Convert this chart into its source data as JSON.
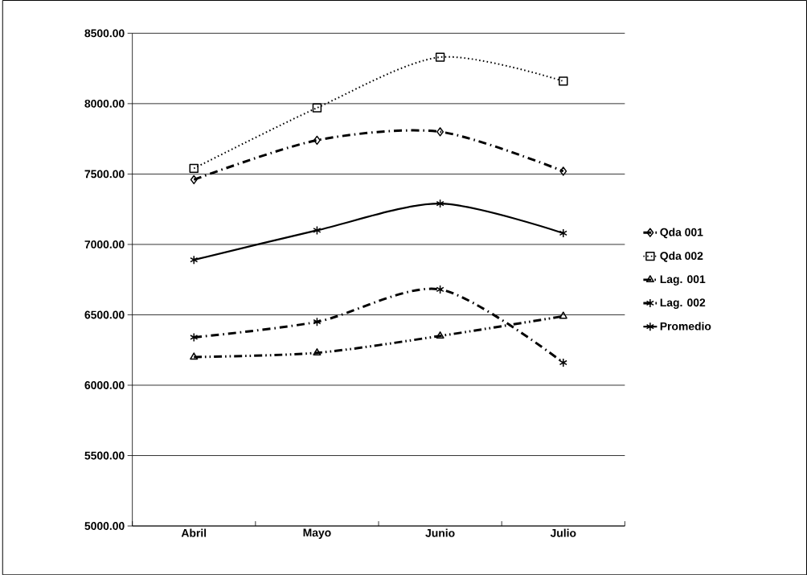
{
  "chart_data": {
    "type": "line",
    "categories": [
      "Abril",
      "Mayo",
      "Junio",
      "Julio"
    ],
    "series": [
      {
        "name": "Qda 001",
        "color": "#000000",
        "marker": "diamond",
        "line_style": "dashdot",
        "values": [
          7460,
          7740,
          7800,
          7520
        ]
      },
      {
        "name": "Qda 002",
        "color": "#000000",
        "marker": "square",
        "line_style": "dotted",
        "values": [
          7540,
          7970,
          8330,
          8160
        ]
      },
      {
        "name": "Lag. 001",
        "color": "#000000",
        "marker": "triangle",
        "line_style": "dashdotdot",
        "values": [
          6200,
          6230,
          6350,
          6490
        ]
      },
      {
        "name": "Lag. 002",
        "color": "#000000",
        "marker": "cross",
        "line_style": "dashdot",
        "values": [
          6340,
          6450,
          6680,
          6160
        ]
      },
      {
        "name": "Promedio",
        "color": "#000000",
        "marker": "cross",
        "line_style": "solid",
        "values": [
          6890,
          7100,
          7290,
          7080
        ]
      }
    ],
    "ylim": [
      5000,
      8500
    ],
    "yticks": [
      {
        "value": 5000,
        "label": "5000.00"
      },
      {
        "value": 5500,
        "label": "5500.00"
      },
      {
        "value": 6000,
        "label": "6000.00"
      },
      {
        "value": 6500,
        "label": "6500.00"
      },
      {
        "value": 7000,
        "label": "7000.00"
      },
      {
        "value": 7500,
        "label": "7500.00"
      },
      {
        "value": 8000,
        "label": "8000.00"
      },
      {
        "value": 8500,
        "label": "8500.00"
      }
    ],
    "grid": "y",
    "legend": "right"
  }
}
